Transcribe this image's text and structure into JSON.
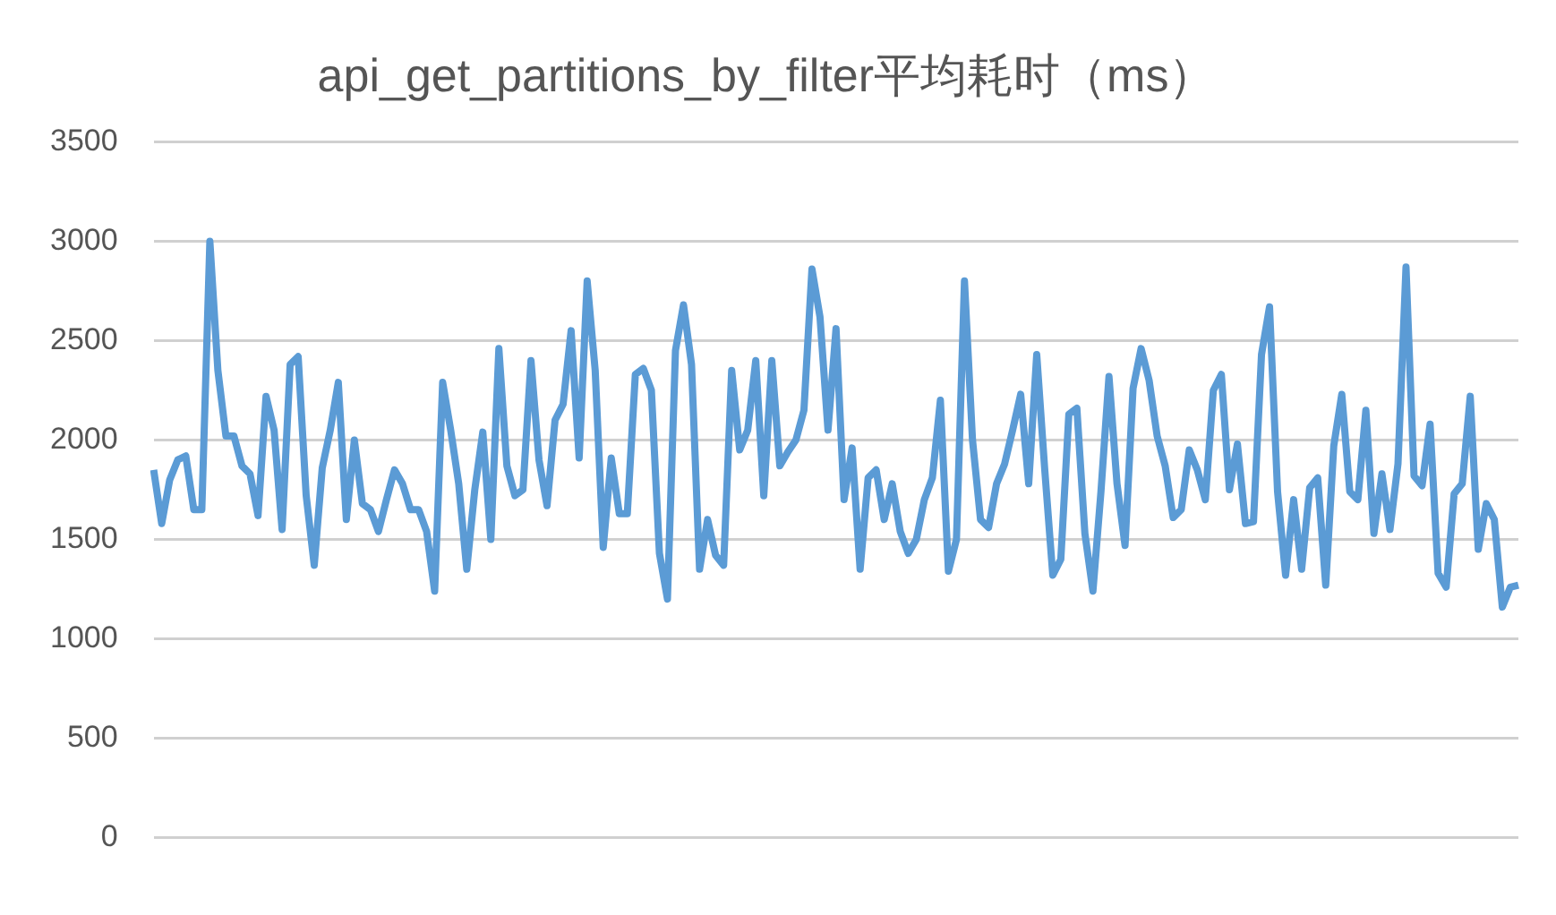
{
  "chart_data": {
    "type": "line",
    "title": "api_get_partitions_by_filter平均耗时（ms）",
    "categories": [
      null,
      null,
      null,
      null,
      null,
      null,
      null,
      null,
      null,
      null,
      null,
      null,
      null,
      null,
      null,
      null,
      null,
      null,
      null,
      null,
      null,
      null,
      null,
      null,
      null,
      null,
      null,
      null,
      null,
      null,
      null,
      null,
      null,
      null,
      null,
      null,
      null,
      null,
      null,
      null,
      null,
      null,
      null,
      null,
      null,
      null,
      null,
      null,
      null,
      null,
      null,
      null,
      null,
      null,
      null,
      null,
      null,
      null,
      null,
      null,
      null,
      null,
      null,
      null,
      null,
      null,
      null,
      null,
      null,
      null,
      null,
      null,
      null,
      null,
      null,
      null,
      null,
      null,
      null,
      null,
      null,
      null,
      null,
      null,
      null,
      null,
      null,
      null,
      null,
      null,
      null,
      null,
      null,
      null,
      null,
      null,
      null,
      null,
      null,
      null,
      null,
      null,
      null,
      null,
      null,
      null,
      null,
      null,
      null,
      null,
      null,
      null,
      null,
      null,
      null,
      null,
      null,
      null,
      null,
      null,
      null,
      null,
      null,
      null,
      null,
      null,
      null,
      null,
      null,
      null,
      null,
      null,
      null,
      null,
      null,
      null,
      null,
      null,
      null,
      null,
      null,
      null,
      null,
      null,
      null,
      null,
      null,
      null,
      null,
      null,
      null,
      null,
      null,
      null,
      null,
      null,
      null,
      null,
      null,
      null,
      null,
      null,
      null,
      null,
      null,
      null,
      null,
      null,
      null,
      null,
      null
    ],
    "series": [
      {
        "color": "#5b9bd5",
        "values": [
          1850,
          1580,
          1800,
          1900,
          1920,
          1650,
          1650,
          3000,
          2350,
          2020,
          2020,
          1870,
          1830,
          1620,
          2220,
          2050,
          1550,
          2380,
          2420,
          1720,
          1370,
          1860,
          2050,
          2290,
          1600,
          2000,
          1680,
          1650,
          1540,
          1700,
          1850,
          1780,
          1650,
          1650,
          1540,
          1240,
          2290,
          2050,
          1780,
          1350,
          1750,
          2040,
          1500,
          2460,
          1870,
          1720,
          1750,
          2400,
          1900,
          1670,
          2100,
          2180,
          2550,
          1910,
          2800,
          2350,
          1460,
          1910,
          1630,
          1630,
          2330,
          2360,
          2250,
          1430,
          1200,
          2450,
          2680,
          2380,
          1350,
          1600,
          1420,
          1370,
          2350,
          1950,
          2050,
          2400,
          1720,
          2400,
          1870,
          1940,
          2000,
          2150,
          2860,
          2620,
          2050,
          2560,
          1700,
          1960,
          1350,
          1810,
          1850,
          1600,
          1780,
          1540,
          1430,
          1500,
          1700,
          1810,
          2200,
          1340,
          1500,
          2800,
          2000,
          1600,
          1560,
          1780,
          1880,
          2050,
          2230,
          1780,
          2430,
          1850,
          1320,
          1400,
          2130,
          2160,
          1530,
          1240,
          1740,
          2320,
          1780,
          1470,
          2260,
          2460,
          2300,
          2020,
          1870,
          1610,
          1650,
          1950,
          1850,
          1700,
          2250,
          2330,
          1750,
          1980,
          1580,
          1590,
          2430,
          2670,
          1740,
          1320,
          1700,
          1350,
          1760,
          1810,
          1270,
          1970,
          2230,
          1740,
          1700,
          2150,
          1530,
          1830,
          1550,
          1880,
          2870,
          1820,
          1770,
          2080,
          1330,
          1260,
          1730,
          1780,
          2220,
          1450,
          1680,
          1600,
          1160,
          1260,
          1270
        ]
      }
    ],
    "ylim": [
      0,
      3500
    ],
    "yticks": [
      0,
      500,
      1000,
      1500,
      2000,
      2500,
      3000,
      3500
    ],
    "grid": "y",
    "tick_labels": "y",
    "marker": "none",
    "line_style": "solid",
    "legend": false
  }
}
